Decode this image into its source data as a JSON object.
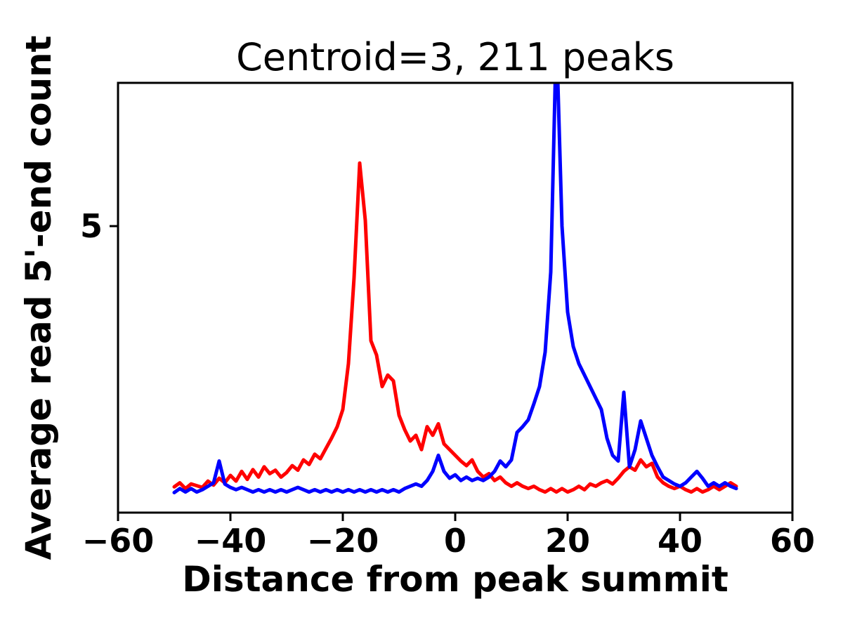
{
  "chart_data": {
    "type": "line",
    "title": "Centroid=3, 211 peaks",
    "xlabel": "Distance from peak summit",
    "ylabel": "Average read 5'-end count",
    "xlim": [
      -60,
      60
    ],
    "ylim": [
      0,
      7.5
    ],
    "xticks": [
      -60,
      -40,
      -20,
      0,
      20,
      40,
      60
    ],
    "xtick_labels": [
      "−60",
      "−40",
      "−20",
      "0",
      "20",
      "40",
      "60"
    ],
    "yticks": [
      5
    ],
    "ytick_labels": [
      "5"
    ],
    "grid": false,
    "legend": null,
    "background_color": "#ffffff",
    "axis_color": "#000000",
    "line_width": 5,
    "x": [
      -50,
      -49,
      -48,
      -47,
      -46,
      -45,
      -44,
      -43,
      -42,
      -41,
      -40,
      -39,
      -38,
      -37,
      -36,
      -35,
      -34,
      -33,
      -32,
      -31,
      -30,
      -29,
      -28,
      -27,
      -26,
      -25,
      -24,
      -23,
      -22,
      -21,
      -20,
      -19,
      -18,
      -17,
      -16,
      -15,
      -14,
      -13,
      -12,
      -11,
      -10,
      -9,
      -8,
      -7,
      -6,
      -5,
      -4,
      -3,
      -2,
      -1,
      0,
      1,
      2,
      3,
      4,
      5,
      6,
      7,
      8,
      9,
      10,
      11,
      12,
      13,
      14,
      15,
      16,
      17,
      18,
      19,
      20,
      21,
      22,
      23,
      24,
      25,
      26,
      27,
      28,
      29,
      30,
      31,
      32,
      33,
      34,
      35,
      36,
      37,
      38,
      39,
      40,
      41,
      42,
      43,
      44,
      45,
      46,
      47,
      48,
      49,
      50
    ],
    "series": [
      {
        "name": "red",
        "color": "#ff0000",
        "values": [
          0.45,
          0.52,
          0.42,
          0.5,
          0.47,
          0.44,
          0.55,
          0.48,
          0.6,
          0.52,
          0.65,
          0.55,
          0.72,
          0.58,
          0.75,
          0.62,
          0.8,
          0.68,
          0.74,
          0.62,
          0.7,
          0.82,
          0.74,
          0.92,
          0.84,
          1.02,
          0.94,
          1.12,
          1.3,
          1.5,
          1.8,
          2.6,
          4.1,
          6.1,
          5.1,
          3.0,
          2.75,
          2.2,
          2.4,
          2.3,
          1.7,
          1.45,
          1.25,
          1.35,
          1.1,
          1.5,
          1.35,
          1.55,
          1.2,
          1.1,
          1.0,
          0.9,
          0.82,
          0.92,
          0.72,
          0.62,
          0.68,
          0.56,
          0.62,
          0.52,
          0.46,
          0.52,
          0.46,
          0.42,
          0.46,
          0.4,
          0.36,
          0.42,
          0.36,
          0.42,
          0.36,
          0.4,
          0.46,
          0.4,
          0.5,
          0.46,
          0.52,
          0.56,
          0.5,
          0.6,
          0.72,
          0.8,
          0.74,
          0.92,
          0.8,
          0.86,
          0.62,
          0.52,
          0.46,
          0.42,
          0.46,
          0.4,
          0.36,
          0.42,
          0.36,
          0.4,
          0.46,
          0.4,
          0.46,
          0.52,
          0.46
        ]
      },
      {
        "name": "blue",
        "color": "#0000ff",
        "values": [
          0.35,
          0.42,
          0.36,
          0.42,
          0.36,
          0.4,
          0.46,
          0.52,
          0.9,
          0.5,
          0.44,
          0.4,
          0.44,
          0.4,
          0.36,
          0.4,
          0.36,
          0.4,
          0.36,
          0.4,
          0.36,
          0.4,
          0.44,
          0.4,
          0.36,
          0.4,
          0.36,
          0.4,
          0.36,
          0.4,
          0.36,
          0.4,
          0.36,
          0.4,
          0.36,
          0.4,
          0.36,
          0.4,
          0.36,
          0.4,
          0.36,
          0.42,
          0.46,
          0.5,
          0.46,
          0.56,
          0.72,
          1.0,
          0.72,
          0.6,
          0.66,
          0.56,
          0.62,
          0.56,
          0.6,
          0.56,
          0.62,
          0.72,
          0.9,
          0.8,
          0.92,
          1.4,
          1.5,
          1.62,
          1.9,
          2.2,
          2.8,
          4.2,
          8.4,
          5.0,
          3.5,
          2.9,
          2.6,
          2.4,
          2.2,
          2.0,
          1.8,
          1.3,
          1.0,
          0.9,
          2.1,
          0.8,
          1.1,
          1.6,
          1.3,
          1.0,
          0.8,
          0.62,
          0.56,
          0.5,
          0.46,
          0.52,
          0.62,
          0.72,
          0.6,
          0.46,
          0.52,
          0.46,
          0.52,
          0.46,
          0.42
        ]
      }
    ]
  }
}
